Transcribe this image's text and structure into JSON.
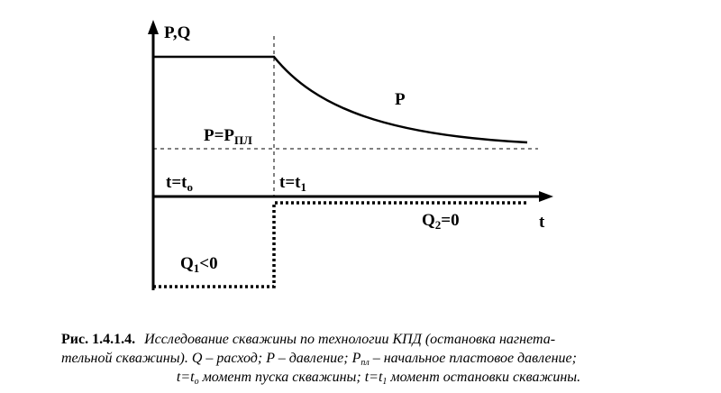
{
  "axes": {
    "y_label": "P,Q",
    "x_label": "t"
  },
  "labels": {
    "p_curve": "P",
    "p_pl": {
      "main": "P=P",
      "sub": "ПЛ"
    },
    "t0": {
      "main": "t=t",
      "sub": "o"
    },
    "t1": {
      "main": "t=t",
      "sub": "1"
    },
    "q2": {
      "main": "Q",
      "sub": "2",
      "rest": "=0"
    },
    "q1": {
      "main": "Q",
      "sub": "1",
      "rest": "<0"
    }
  },
  "caption": {
    "figure": "Рис. 1.4.1.4.",
    "line1": "Исследование скважины по технологии КПД (остановка нагнета-",
    "line2": {
      "a": "тельной скважины). Q – расход; P – давление; P",
      "sub": "пл",
      "b": " – начальное пластовое давление;"
    },
    "line3": {
      "a": "t=t",
      "sub1": "o",
      "b": " момент пуска скважины; t=t",
      "sub2": "1",
      "c": " момент остановки скважины."
    }
  }
}
